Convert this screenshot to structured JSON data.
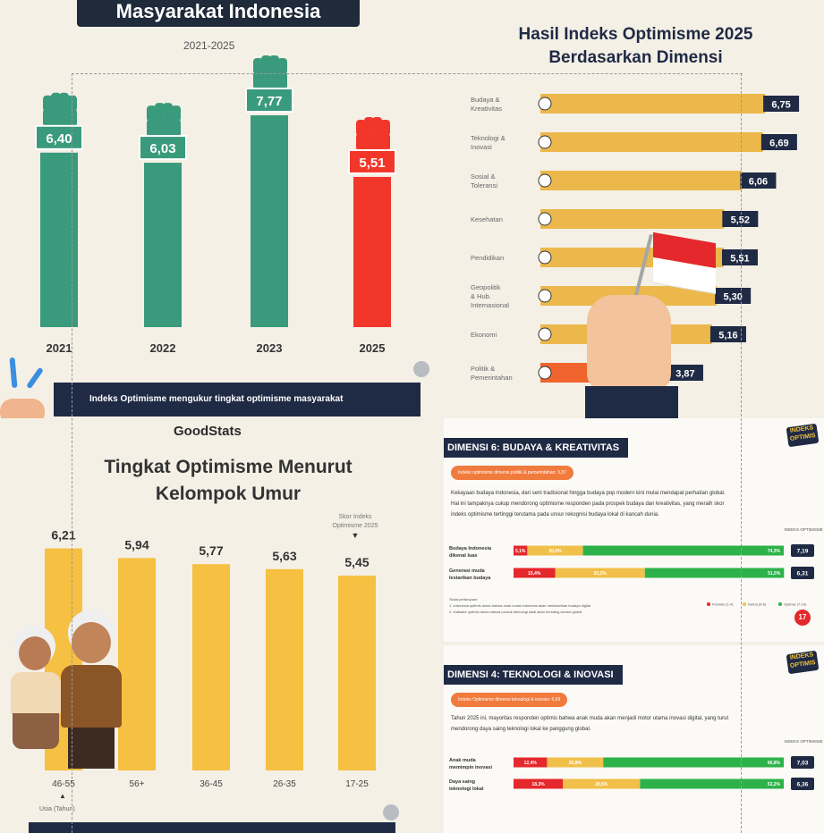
{
  "panel_yearly": {
    "title": "Masyarakat Indonesia",
    "subtitle": "2021-2025",
    "footer": "Indeks Optimisme mengukur tingkat optimisme masyarakat",
    "colors": {
      "teal": "#3a9a7c",
      "red": "#f2362a",
      "navy": "#1f2a44"
    },
    "chart_data": {
      "type": "bar",
      "categories": [
        "2021",
        "2022",
        "2023",
        "2025"
      ],
      "values": [
        6.4,
        6.03,
        7.77,
        5.51
      ],
      "value_labels": [
        "6,40",
        "6,03",
        "7,77",
        "5,51"
      ],
      "highlight_index": 3
    }
  },
  "panel_dimension": {
    "title_line1": "Hasil Indeks Optimisme 2025",
    "title_line2": "Berdasarkan Dimensi",
    "colors": {
      "bar": "#ecb84c",
      "low": "#f0642e",
      "badge": "#1f2a44"
    },
    "chart_data": {
      "type": "bar",
      "orientation": "horizontal",
      "categories": [
        "Budaya & Kreativitas",
        "Teknologi & Inovasi",
        "Sosial & Toleransi",
        "Kesehatan",
        "Pendidikan",
        "Geopolitik & Hub. Internasional",
        "Ekonomi",
        "Politik & Pemerintahan"
      ],
      "category_lines": [
        [
          "Budaya &",
          "Kreativitas"
        ],
        [
          "Teknologi &",
          "Inovasi"
        ],
        [
          "Sosial &",
          "Toleransi"
        ],
        [
          "Kesehatan"
        ],
        [
          "Pendidikan"
        ],
        [
          "Geopolitik",
          "& Hub.",
          "Internasional"
        ],
        [
          "Ekonomi"
        ],
        [
          "Politik &",
          "Pemerintahan"
        ]
      ],
      "values": [
        6.75,
        6.69,
        6.06,
        5.52,
        5.51,
        5.3,
        5.16,
        3.87
      ],
      "value_labels": [
        "6,75",
        "6,69",
        "6,06",
        "5,52",
        "5,51",
        "5,30",
        "5,16",
        "3,87"
      ]
    }
  },
  "panel_age": {
    "brand": "GoodStats",
    "title_line1": "Tingkat Optimisme Menurut",
    "title_line2": "Kelompok Umur",
    "annotation_line1": "Skor Indeks",
    "annotation_line2": "Optimisme 2025",
    "age_axis_note": "Usia (Tahun)",
    "colors": {
      "bar": "#f6c042"
    },
    "chart_data": {
      "type": "bar",
      "categories": [
        "46-55",
        "56+",
        "36-45",
        "26-35",
        "17-25"
      ],
      "values": [
        6.21,
        5.94,
        5.77,
        5.63,
        5.45
      ],
      "value_labels": [
        "6,21",
        "5,94",
        "5,77",
        "5,63",
        "5,45"
      ]
    }
  },
  "panel_budaya": {
    "heading": "DIMENSI 6: BUDAYA & KREATIVITAS",
    "pill": "Indeks optimisme dimensi politik & pemerintahan: 3,87",
    "para": [
      "Kekayaan budaya Indonesia, dari seni tradisional hingga budaya pop modern kini mulai mendapat perhatian global.",
      "Hal ini tampaknya cukup mendorong optimisme responden pada prospek budaya dan kreativitas, yang meraih skor",
      "indeks optimisme tertinggi terutama pada unsur rekognisi budaya lokal di kancah dunia."
    ],
    "score_header": "INDEKS OPTIMISME",
    "rows": [
      {
        "label_l1": "Budaya Indonesia",
        "label_l2": "dikenal luas",
        "segments": [
          {
            "p": 5.1,
            "t": "5,1%"
          },
          {
            "p": 20.6,
            "t": "20,6%"
          },
          {
            "p": 74.3,
            "t": "74,3%"
          }
        ],
        "score": "7,19"
      },
      {
        "label_l1": "Generasi muda",
        "label_l2": "lestarikan budaya",
        "segments": [
          {
            "p": 15.4,
            "t": "15,4%"
          },
          {
            "p": 33.2,
            "t": "33,2%"
          },
          {
            "p": 51.5,
            "t": "51,5%"
          }
        ],
        "score": "6,31"
      }
    ],
    "note_lines": [
      "Skala pertanyaan:",
      "1. Indonesia optimis dunia bahwa anak muda Indonesia akan melestarikan budaya digital",
      "2. Indikator optimis dunia bahwa produk teknologi lokal akan bersaing secara global"
    ],
    "legend": [
      "Pesimis (1-4)",
      "Netral (5-6)",
      "Optimis (7-10)"
    ],
    "page_badge": "17",
    "logo_line1": "INDEKS",
    "logo_line2": "OPTIMIS"
  },
  "panel_teknologi": {
    "heading": "DIMENSI 4: TEKNOLOGI & INOVASI",
    "pill": "Indeks Optimisme dimensi teknologi & inovasi: 6,69",
    "para": [
      "Tahun 2025 ini, mayoritas responden optimis bahwa anak muda akan menjadi motor utama inovasi digital, yang turut",
      "mendorong daya saing teknologi lokal ke panggung global."
    ],
    "score_header": "INDEKS OPTIMISME",
    "rows": [
      {
        "label_l1": "Anak muda",
        "label_l2": "memimpin inovasi",
        "segments": [
          {
            "p": 12.4,
            "t": "12,4%"
          },
          {
            "p": 20.8,
            "t": "20,8%"
          },
          {
            "p": 66.8,
            "t": "66,8%"
          }
        ],
        "score": "7,03"
      },
      {
        "label_l1": "Daya saing",
        "label_l2": "teknologi lokal",
        "segments": [
          {
            "p": 18.3,
            "t": "18,3%"
          },
          {
            "p": 28.5,
            "t": "28,5%"
          },
          {
            "p": 53.2,
            "t": "53,2%"
          }
        ],
        "score": "6,36"
      }
    ],
    "logo_line1": "INDEKS",
    "logo_line2": "OPTIMIS"
  }
}
